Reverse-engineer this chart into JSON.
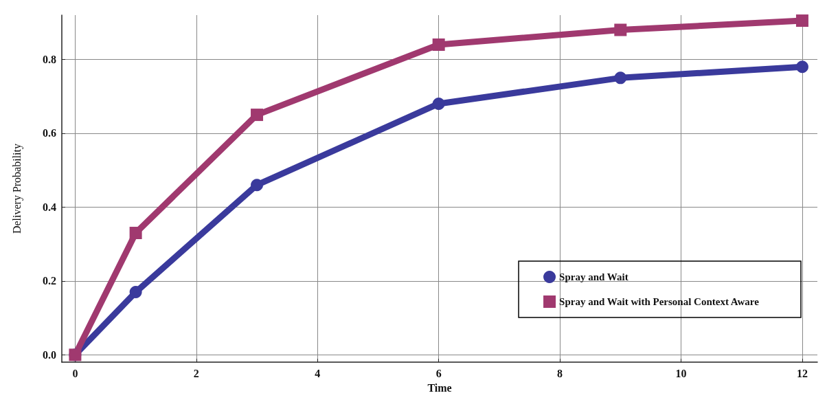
{
  "chart_data": {
    "type": "line",
    "xlabel": "Time",
    "ylabel": "Delivery Probability",
    "x": [
      0,
      1,
      3,
      6,
      9,
      12
    ],
    "series": [
      {
        "name": "Spray and Wait",
        "color": "#3a3a9c",
        "values": [
          0,
          0.17,
          0.46,
          0.68,
          0.75,
          0.78
        ],
        "marker": "circle"
      },
      {
        "name": "Spray and Wait with Personal Context Aware",
        "color": "#a0396f",
        "values": [
          0,
          0.33,
          0.65,
          0.84,
          0.88,
          0.905
        ],
        "marker": "square"
      }
    ],
    "xlim": [
      -0.22,
      12.25
    ],
    "ylim": [
      -0.02,
      0.92
    ],
    "xticks": [
      0,
      2,
      4,
      6,
      8,
      10,
      12
    ],
    "yticks": [
      {
        "value": 0,
        "label": "0.0"
      },
      {
        "value": 0.2,
        "label": "0.2"
      },
      {
        "value": 0.4,
        "label": "0.4"
      },
      {
        "value": 0.6,
        "label": "0.6"
      },
      {
        "value": 0.8,
        "label": "0.8"
      }
    ],
    "grid": true,
    "legend": "bottom right",
    "line_style": "solid"
  }
}
